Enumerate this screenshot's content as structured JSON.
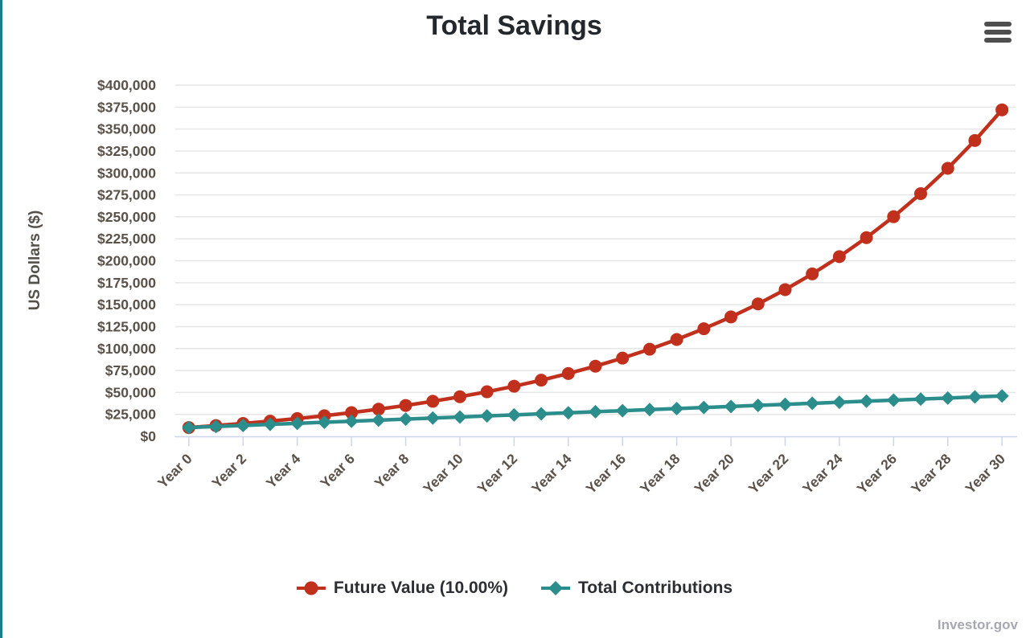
{
  "header": {
    "title": "Total Savings"
  },
  "chart_data": {
    "type": "line",
    "title": "Total Savings",
    "xlabel": "",
    "ylabel": "US Dollars ($)",
    "categories": [
      "Year 0",
      "Year 1",
      "Year 2",
      "Year 3",
      "Year 4",
      "Year 5",
      "Year 6",
      "Year 7",
      "Year 8",
      "Year 9",
      "Year 10",
      "Year 11",
      "Year 12",
      "Year 13",
      "Year 14",
      "Year 15",
      "Year 16",
      "Year 17",
      "Year 18",
      "Year 19",
      "Year 20",
      "Year 21",
      "Year 22",
      "Year 23",
      "Year 24",
      "Year 25",
      "Year 26",
      "Year 27",
      "Year 28",
      "Year 29",
      "Year 30"
    ],
    "x_tick_every": 2,
    "x_tick_labels": [
      "Year 0",
      "Year 2",
      "Year 4",
      "Year 6",
      "Year 8",
      "Year 10",
      "Year 12",
      "Year 14",
      "Year 16",
      "Year 18",
      "Year 20",
      "Year 22",
      "Year 24",
      "Year 26",
      "Year 28",
      "Year 30"
    ],
    "ylim": [
      0,
      400000
    ],
    "y_tick_step": 25000,
    "y_tick_labels": [
      "$0",
      "$25,000",
      "$50,000",
      "$75,000",
      "$100,000",
      "$125,000",
      "$150,000",
      "$175,000",
      "$200,000",
      "$225,000",
      "$250,000",
      "$275,000",
      "$300,000",
      "$325,000",
      "$350,000",
      "$375,000",
      "$400,000"
    ],
    "grid": "horizontal",
    "legend_position": "bottom-center",
    "series": [
      {
        "name": "Future Value (10.00%)",
        "color": "#c1301c",
        "marker": "circle",
        "values": [
          10000,
          12200,
          14620,
          17282,
          20210,
          23431,
          26974,
          30872,
          35159,
          39875,
          45062,
          50769,
          57045,
          63950,
          71545,
          79899,
          89089,
          99198,
          110318,
          122550,
          136005,
          150806,
          167086,
          184995,
          204694,
          226364,
          250200,
          276420,
          305262,
          336988,
          371887
        ]
      },
      {
        "name": "Total Contributions",
        "color": "#2b8e8d",
        "marker": "diamond",
        "values": [
          10000,
          11200,
          12400,
          13600,
          14800,
          16000,
          17200,
          18400,
          19600,
          20800,
          22000,
          23200,
          24400,
          25600,
          26800,
          28000,
          29200,
          30400,
          31600,
          32800,
          34000,
          35200,
          36400,
          37600,
          38800,
          40000,
          41200,
          42400,
          43600,
          44800,
          46000
        ]
      }
    ],
    "credits": "Investor.gov"
  },
  "colors": {
    "accent_border": "#187e87",
    "grid_line": "#e6e6e6",
    "axis_line": "#ccd6eb",
    "tick_label": "#5a5149",
    "axis_title": "#55504a",
    "title_text": "#23282d",
    "legend_text": "#2b2e33",
    "credits_text": "#a6a9b2",
    "menu_icon": "#4f4f4f"
  }
}
